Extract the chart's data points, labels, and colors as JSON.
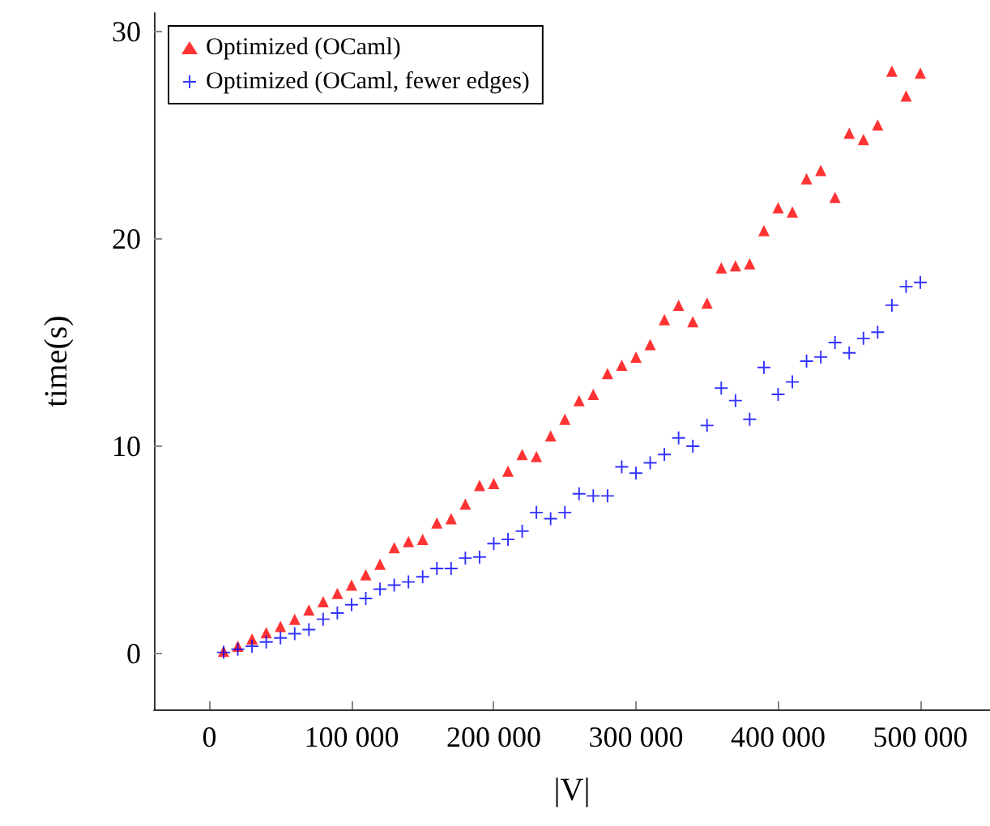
{
  "chart_data": {
    "type": "scatter",
    "xlabel": "|V|",
    "ylabel": "time(s)",
    "x": [
      10000,
      20000,
      30000,
      40000,
      50000,
      60000,
      70000,
      80000,
      90000,
      100000,
      110000,
      120000,
      130000,
      140000,
      150000,
      160000,
      170000,
      180000,
      190000,
      200000,
      210000,
      220000,
      230000,
      240000,
      250000,
      260000,
      270000,
      280000,
      290000,
      300000,
      310000,
      320000,
      330000,
      340000,
      350000,
      360000,
      370000,
      380000,
      390000,
      400000,
      410000,
      420000,
      430000,
      440000,
      450000,
      460000,
      470000,
      480000,
      490000,
      500000
    ],
    "series": [
      {
        "name": "Optimized (OCaml)",
        "color": "#ff0000",
        "marker": "triangle",
        "values": [
          0.1,
          0.35,
          0.7,
          1.0,
          1.3,
          1.65,
          2.1,
          2.5,
          2.9,
          3.3,
          3.8,
          4.3,
          5.1,
          5.4,
          5.5,
          6.3,
          6.5,
          7.2,
          8.1,
          8.2,
          8.8,
          9.6,
          9.5,
          10.5,
          11.3,
          12.2,
          12.5,
          13.5,
          13.9,
          14.3,
          14.9,
          16.1,
          16.8,
          16.0,
          16.9,
          18.6,
          18.7,
          18.8,
          20.4,
          21.5,
          21.3,
          22.9,
          23.3,
          22.0,
          25.1,
          24.8,
          25.5,
          28.1,
          26.9,
          28.0
        ]
      },
      {
        "name": "Optimized (OCaml, fewer edges)",
        "color": "#0000ff",
        "marker": "cross",
        "values": [
          0.05,
          0.2,
          0.35,
          0.55,
          0.75,
          0.95,
          1.15,
          1.65,
          1.95,
          2.35,
          2.65,
          3.1,
          3.3,
          3.45,
          3.7,
          4.1,
          4.1,
          4.6,
          4.65,
          5.3,
          5.5,
          5.9,
          6.8,
          6.5,
          6.8,
          7.7,
          7.6,
          7.6,
          9.0,
          8.7,
          9.2,
          9.6,
          10.4,
          10.0,
          11.0,
          12.8,
          12.2,
          11.3,
          13.8,
          12.5,
          13.1,
          14.1,
          14.3,
          15.0,
          14.5,
          15.2,
          15.5,
          16.8,
          17.7,
          17.9
        ]
      }
    ],
    "xlim": [
      -39000,
      549000
    ],
    "xticks": [
      0,
      {
        "value": 100000,
        "label": "100 000"
      },
      {
        "value": 200000,
        "label": "200 000"
      },
      {
        "value": 300000,
        "label": "300 000"
      },
      {
        "value": 400000,
        "label": "400 000"
      },
      {
        "value": 500000,
        "label": "500 000"
      }
    ],
    "ylim": [
      -2.7,
      30.9
    ],
    "yticks": [
      0,
      10,
      20,
      30
    ],
    "grid": false,
    "legend": "top left"
  }
}
